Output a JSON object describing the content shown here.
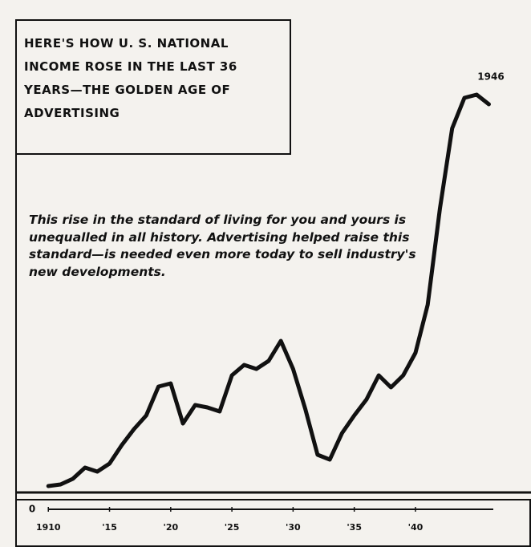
{
  "chart_data": {
    "type": "line",
    "title": "HERE'S HOW U. S. NATIONAL INCOME ROSE IN THE LAST 36 YEARS—THE GOLDEN AGE OF ADVERTISING",
    "subtitle": "This rise in the standard of living for you and yours is unequalled in all history. Advertising helped raise this standard—is needed even more today to sell industry's new developments.",
    "annotation": "1946",
    "x": [
      1910,
      1911,
      1912,
      1913,
      1914,
      1915,
      1916,
      1917,
      1918,
      1919,
      1920,
      1921,
      1922,
      1923,
      1924,
      1925,
      1926,
      1927,
      1928,
      1929,
      1930,
      1931,
      1932,
      1933,
      1934,
      1935,
      1936,
      1937,
      1938,
      1939,
      1940,
      1941,
      1942,
      1943,
      1944,
      1945,
      1946
    ],
    "values": [
      5.8,
      6.2,
      7.6,
      10.4,
      9.4,
      11.4,
      16,
      20,
      23.4,
      30.6,
      31.4,
      21.4,
      26,
      25.4,
      24.4,
      33.4,
      36,
      35,
      37,
      42,
      35,
      25,
      13.6,
      12.4,
      19,
      23.4,
      27.4,
      33.4,
      30.4,
      33.4,
      39,
      51,
      75,
      95,
      102.6,
      103.4,
      101
    ],
    "color": "#111111",
    "xlim": [
      1909,
      1948
    ],
    "xticks": [
      {
        "value": 1910,
        "label": "1910"
      },
      {
        "value": 1915,
        "label": "'15"
      },
      {
        "value": 1920,
        "label": "'20"
      },
      {
        "value": 1925,
        "label": "'25"
      },
      {
        "value": 1930,
        "label": "'30"
      },
      {
        "value": 1935,
        "label": "'35"
      },
      {
        "value": 1940,
        "label": "'40"
      }
    ],
    "ylim": [
      0,
      120
    ],
    "yticks": [
      0
    ]
  }
}
